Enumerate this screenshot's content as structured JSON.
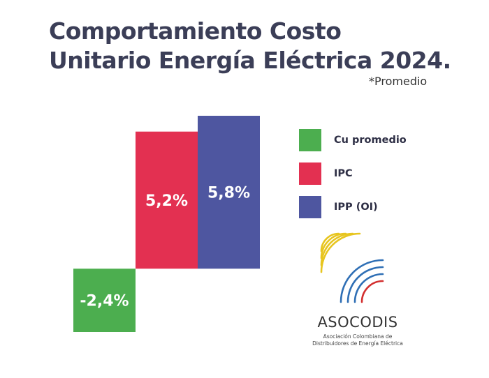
{
  "title_line1": "Comportamiento Costo",
  "title_line2": "Unitario Energía Eléctrica 2024.",
  "subtitle": "*Promedio",
  "chart_data": {
    "type": "bar",
    "title": "Comportamiento Costo Unitario Energía Eléctrica 2024.",
    "subtitle": "*Promedio",
    "categories": [
      "Cu promedio",
      "IPC",
      "IPP (OI)"
    ],
    "values": [
      -2.4,
      5.2,
      5.8
    ],
    "value_labels": [
      "-2,4%",
      "5,2%",
      "5,8%"
    ],
    "unit": "%",
    "colors": [
      "#4cae4f",
      "#e33051",
      "#4e56a0"
    ],
    "ylim": [
      -2.4,
      5.8
    ],
    "grid": false,
    "legend_position": "right"
  },
  "legend": [
    {
      "label": "Cu promedio",
      "color": "#4cae4f"
    },
    {
      "label": "IPC",
      "color": "#e33051"
    },
    {
      "label": "IPP (OI)",
      "color": "#4e56a0"
    }
  ],
  "logo": {
    "name": "ASOCODIS",
    "subtitle_line1": "Asociación Colombiana de",
    "subtitle_line2": "Distribuidores de Energía Eléctrica",
    "arc_colors": [
      "#e7c51f",
      "#2f6fb5",
      "#d32f2f"
    ]
  }
}
